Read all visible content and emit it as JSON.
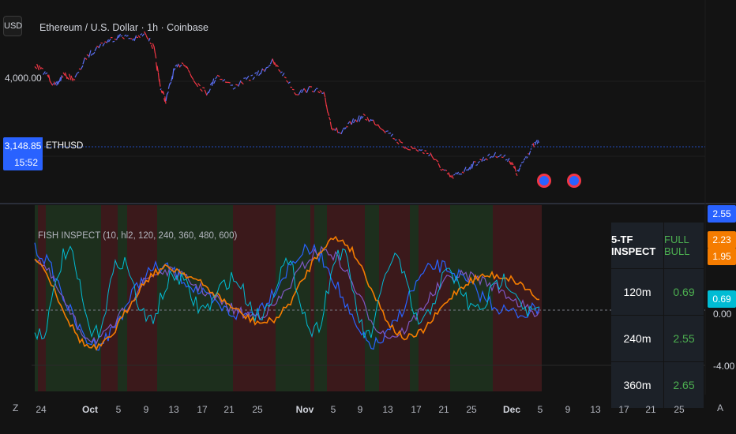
{
  "header": {
    "currency_button": "USD",
    "title": "Ethereum / U.S. Dollar · 1h · Coinbase"
  },
  "price_pane": {
    "price_label": "4,000.00",
    "last_price": "3,148.85",
    "symbol": "ETHUSD",
    "countdown": "15:52"
  },
  "indicator": {
    "label": "FISH INSPECT (10, hl2, 120, 240, 360, 480, 600)",
    "scale_tags": [
      "2.55",
      "2.23",
      "1.95",
      "0.69"
    ],
    "scale_tag_colors": [
      "#2962ff",
      "#f57c00",
      "#f57c00",
      "#00bcd4"
    ],
    "axis_labels": [
      "0.00",
      "-4.00"
    ]
  },
  "table": {
    "header_left": "5-TF INSPECT",
    "header_right": "FULL BULL",
    "rows": [
      {
        "tf": "120m",
        "value": "0.69"
      },
      {
        "tf": "240m",
        "value": "2.55"
      },
      {
        "tf": "360m",
        "value": "2.65"
      }
    ]
  },
  "time_axis": {
    "labels": [
      "24",
      "Oct",
      "5",
      "9",
      "13",
      "17",
      "21",
      "25",
      "Nov",
      "5",
      "9",
      "13",
      "17",
      "21",
      "25",
      "Dec",
      "5",
      "9",
      "13",
      "17",
      "21",
      "25"
    ],
    "left_button": "Z",
    "right_button": "A"
  },
  "colors": {
    "background": "#131313",
    "accent": "#2962ff",
    "bull_text": "#4caf50",
    "bear_line": "#f23645",
    "orange": "#f57c00",
    "cyan": "#00bcd4"
  }
}
